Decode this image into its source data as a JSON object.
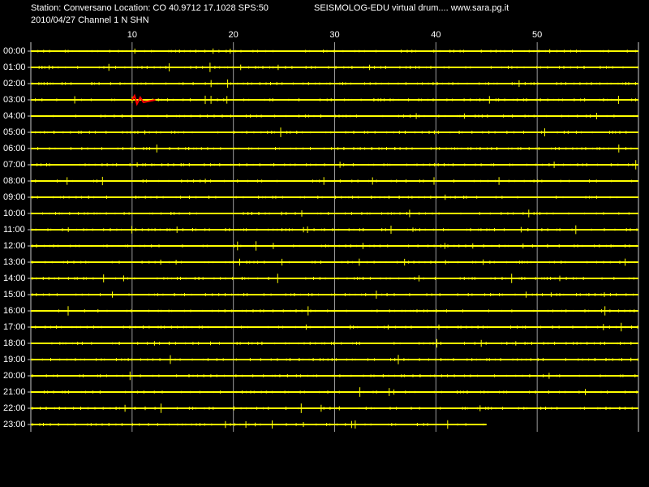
{
  "chart_data": {
    "type": "drum",
    "title": "Station: Conversano Location: CO 40.9712 17.1028 SPS:50",
    "subtitle": "2010/04/27  Channel 1 N SHN",
    "annotation": "SEISMOLOG-EDU virtual drum.... www.sara.pg.it",
    "categories": [
      "00:00",
      "01:00",
      "02:00",
      "03:00",
      "04:00",
      "05:00",
      "06:00",
      "07:00",
      "08:00",
      "09:00",
      "10:00",
      "11:00",
      "12:00",
      "13:00",
      "14:00",
      "15:00",
      "16:00",
      "17:00",
      "18:00",
      "19:00",
      "20:00",
      "21:00",
      "22:00",
      "23:00"
    ],
    "values": [
      60,
      60,
      60,
      60,
      60,
      60,
      60,
      60,
      60,
      60,
      60,
      60,
      60,
      60,
      60,
      60,
      60,
      60,
      60,
      60,
      60,
      60,
      60,
      45
    ],
    "color": "#ffff00",
    "xlim": [
      0,
      60
    ],
    "xticks": [
      10,
      20,
      30,
      40,
      50
    ],
    "grid": true,
    "grid_color": "#9a9a9a",
    "highlight": {
      "category": 3,
      "xrange": [
        10,
        12.3
      ],
      "color": "#ff0000"
    }
  }
}
